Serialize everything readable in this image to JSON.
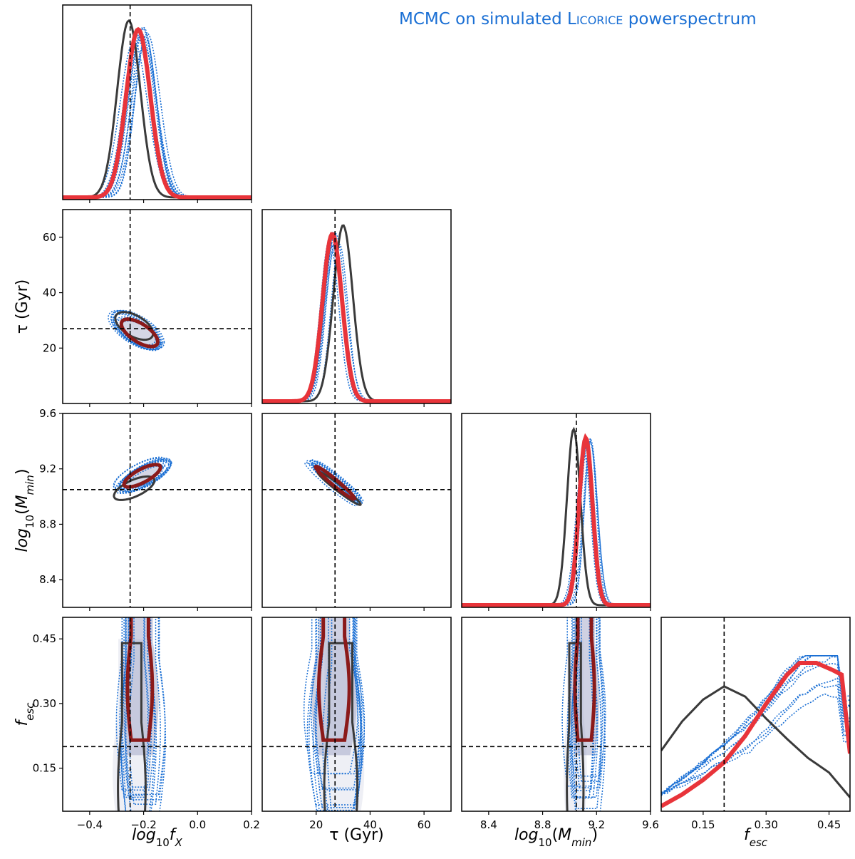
{
  "figure": {
    "title_prefix": "MCMC on simulated ",
    "title_name": "Licorice",
    "title_suffix": " powerspectrum"
  },
  "colors": {
    "fiducial": "#e8343a",
    "fiducial_contour": "#8b1a1a",
    "reference": "#3a3a3a",
    "realizations": "#1a6fd4",
    "fill": "#9fa4c6",
    "truth_line": "#000000"
  },
  "chart_data": {
    "type": "corner",
    "parameters": [
      {
        "name": "log10fX",
        "axis_label": "log10fX",
        "range": [
          -0.5,
          0.2
        ],
        "ticks": [
          "−0.4",
          "−0.2",
          "0.0",
          "0.2"
        ],
        "truth": -0.25
      },
      {
        "name": "tau",
        "axis_label": "τ (Gyr)",
        "range": [
          0,
          70
        ],
        "ticks": [
          "20",
          "40",
          "60"
        ],
        "truth": 27
      },
      {
        "name": "log10Mmin",
        "axis_label": "log10(Mmin)",
        "range": [
          8.2,
          9.6
        ],
        "ticks": [
          "8.4",
          "8.8",
          "9.2",
          "9.6"
        ],
        "truth": 9.05
      },
      {
        "name": "fesc",
        "axis_label": "fesc",
        "range": [
          0.05,
          0.5
        ],
        "ticks": [
          "0.15",
          "0.30",
          "0.45"
        ],
        "truth": 0.2
      }
    ],
    "series": [
      {
        "role": "fiducial"
      },
      {
        "role": "reference"
      },
      {
        "role": "realizations"
      }
    ],
    "marginals": {
      "log10fX": {
        "fiducial_peak": -0.22,
        "fiducial_sigma": 0.045,
        "reference_peak": -0.255,
        "reference_sigma": 0.043
      },
      "tau": {
        "fiducial_peak": 26,
        "fiducial_sigma": 3.6,
        "reference_peak": 30,
        "reference_sigma": 3.6
      },
      "log10Mmin": {
        "fiducial_peak": 9.12,
        "fiducial_sigma": 0.05,
        "reference_peak": 9.03,
        "reference_sigma": 0.05
      },
      "fesc": {
        "fiducial": [
          [
            0.05,
            0.02
          ],
          [
            0.1,
            0.1
          ],
          [
            0.15,
            0.2
          ],
          [
            0.2,
            0.32
          ],
          [
            0.25,
            0.5
          ],
          [
            0.3,
            0.72
          ],
          [
            0.35,
            0.92
          ],
          [
            0.38,
            1.0
          ],
          [
            0.42,
            1.0
          ],
          [
            0.46,
            0.95
          ],
          [
            0.48,
            0.92
          ],
          [
            0.5,
            0.38
          ]
        ],
        "reference": [
          [
            0.05,
            0.4
          ],
          [
            0.1,
            0.6
          ],
          [
            0.15,
            0.75
          ],
          [
            0.2,
            0.84
          ],
          [
            0.25,
            0.77
          ],
          [
            0.3,
            0.62
          ],
          [
            0.35,
            0.48
          ],
          [
            0.4,
            0.35
          ],
          [
            0.45,
            0.25
          ],
          [
            0.5,
            0.08
          ]
        ]
      }
    },
    "contours_2d": {
      "tau_vs_log10fX": {
        "fiducial": {
          "center": [
            -0.215,
            25.5
          ],
          "half_widths": [
            0.075,
            5.5
          ],
          "rho": -0.65
        },
        "reference": {
          "center": [
            -0.235,
            28
          ],
          "half_widths": [
            0.07,
            5
          ],
          "rho": -0.55
        }
      },
      "log10Mmin_vs_log10fX": {
        "fiducial": {
          "center": [
            -0.205,
            9.15
          ],
          "half_widths": [
            0.075,
            0.09
          ],
          "rho": 0.75
        },
        "reference": {
          "center": [
            -0.235,
            9.06
          ],
          "half_widths": [
            0.075,
            0.085
          ],
          "rho": 0.65
        }
      },
      "log10Mmin_vs_tau": {
        "fiducial": {
          "center": [
            27,
            9.1
          ],
          "half_widths": [
            8,
            0.13
          ],
          "rho": -0.97
        },
        "reference": {
          "center": [
            28.5,
            9.06
          ],
          "half_widths": [
            8,
            0.12
          ],
          "rho": -0.97
        }
      }
    }
  }
}
